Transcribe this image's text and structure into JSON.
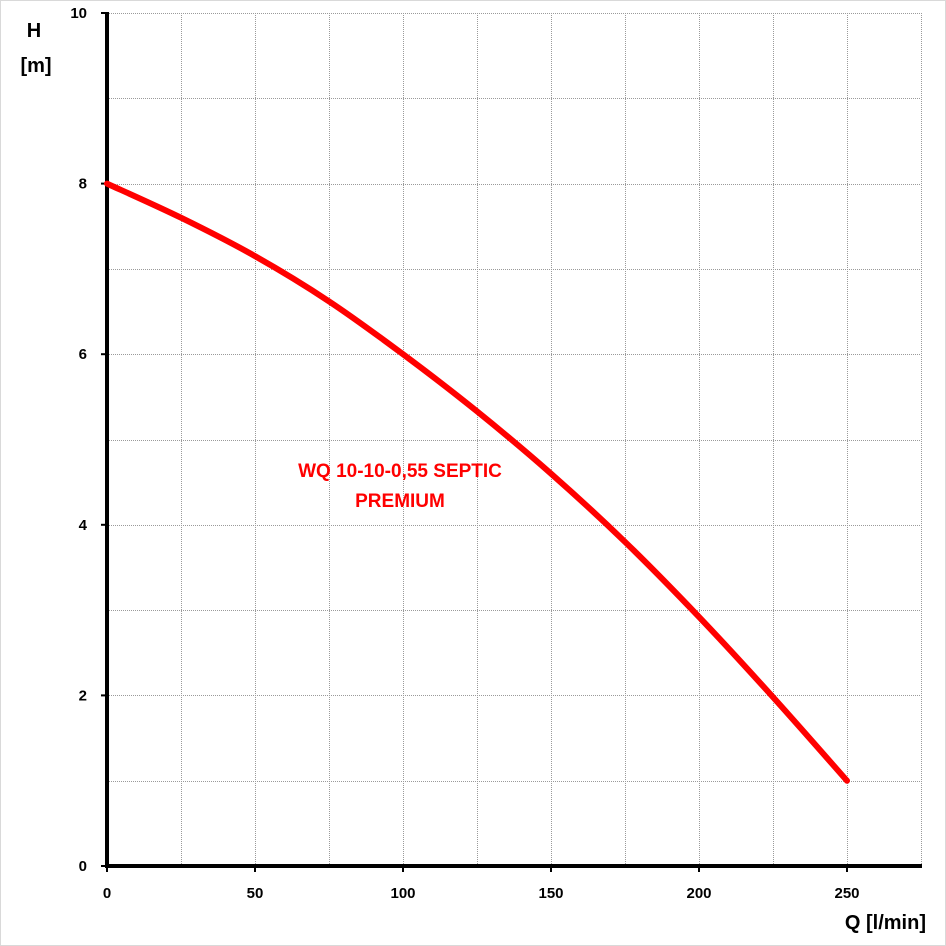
{
  "chart_data": {
    "type": "line",
    "title": "",
    "xlabel": "Q [l/min]",
    "ylabel": {
      "line1": "H",
      "line2": "[m]"
    },
    "xlim": [
      0,
      275
    ],
    "ylim": [
      0,
      10
    ],
    "x_ticks": [
      0,
      50,
      100,
      150,
      200,
      250
    ],
    "y_ticks": [
      0,
      2,
      4,
      6,
      8,
      10
    ],
    "x_minor_grid_step": 25,
    "y_minor_grid_step": 1,
    "grid": true,
    "series": [
      {
        "name": {
          "line1": "WQ 10-10-0,55 SEPTIC",
          "line2": "PREMIUM"
        },
        "color": "#ff0000",
        "x": [
          0,
          25,
          50,
          75,
          100,
          125,
          150,
          175,
          200,
          225,
          250
        ],
        "y": [
          8.0,
          7.6,
          7.15,
          6.62,
          6.0,
          5.33,
          4.6,
          3.8,
          2.92,
          1.98,
          1.0
        ]
      }
    ]
  }
}
